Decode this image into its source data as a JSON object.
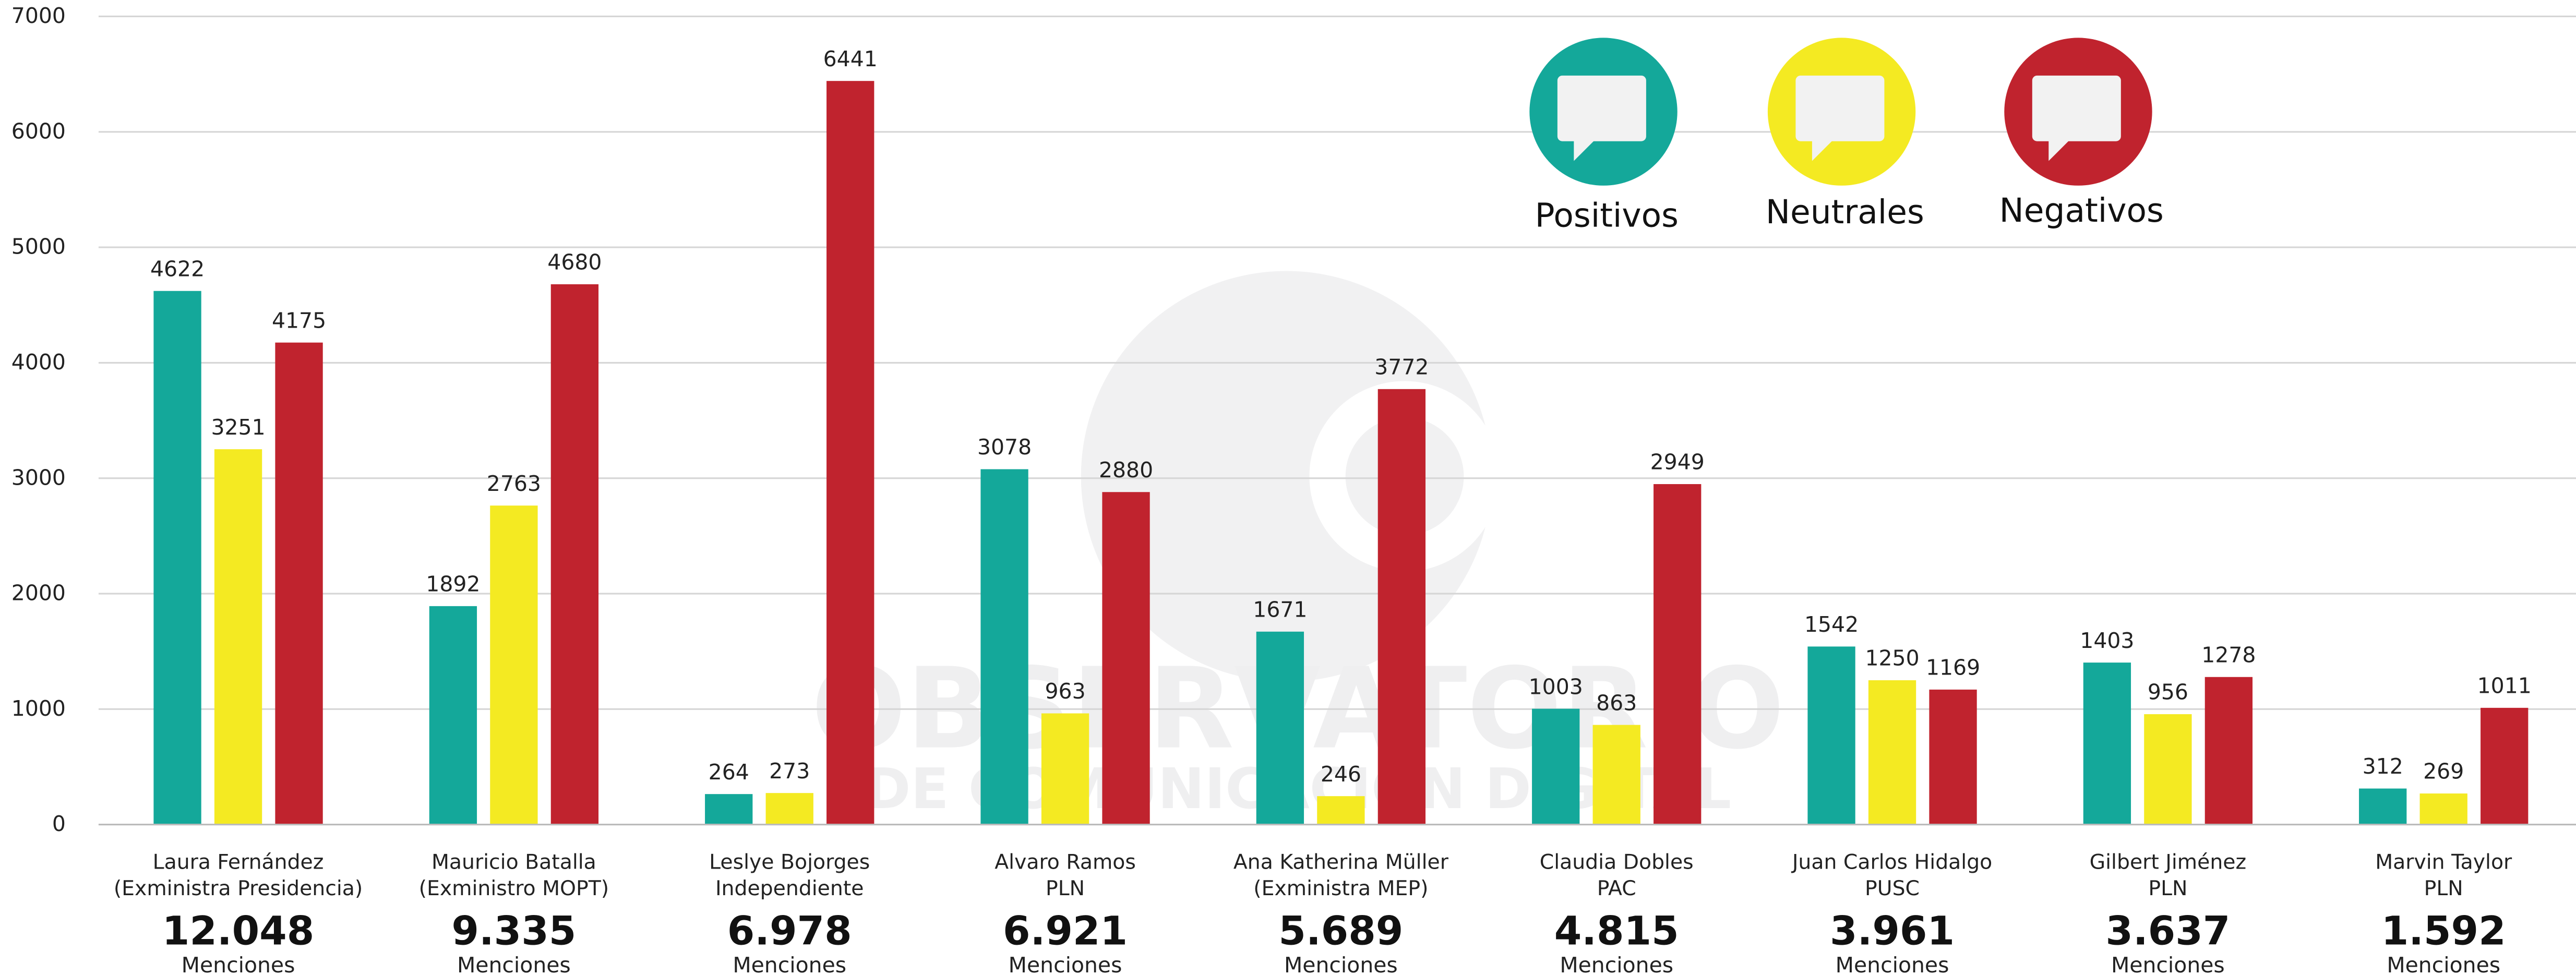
{
  "chart_data": {
    "type": "bar",
    "categories": [
      "Laura Fernández",
      "Mauricio Batalla",
      "Leslye Bojorges",
      "Alvaro Ramos",
      "Ana Katherina Müller",
      "Claudia Dobles",
      "Juan Carlos Hidalgo",
      "Gilbert Jiménez",
      "Marvin Taylor"
    ],
    "category_notes": [
      "(Exministra Presidencia)",
      "(Exministro MOPT)",
      "Independiente",
      "PLN",
      "(Exministra MEP)",
      "PAC",
      "PUSC",
      "PLN",
      "PLN"
    ],
    "totals": [
      "12.048",
      "9.335",
      "6.978",
      "6.921",
      "5.689",
      "4.815",
      "3.961",
      "3.637",
      "1.592"
    ],
    "totals_label": "Menciones",
    "series": [
      {
        "name": "Positivos",
        "color": "#14a89a",
        "values": [
          4622,
          1892,
          264,
          3078,
          1671,
          1003,
          1542,
          1403,
          312
        ]
      },
      {
        "name": "Neutrales",
        "color": "#f4ea22",
        "values": [
          3251,
          2763,
          273,
          963,
          246,
          863,
          1250,
          956,
          269
        ]
      },
      {
        "name": "Negativos",
        "color": "#c0232e",
        "values": [
          4175,
          4680,
          6441,
          2880,
          3772,
          2949,
          1169,
          1278,
          1011
        ]
      }
    ],
    "watermark": [
      "OBSERVATORIO",
      "DE COMUNICACIÓN DIGITAL"
    ],
    "ylim": [
      0,
      7000
    ],
    "yticks": [
      0,
      1000,
      2000,
      3000,
      4000,
      5000,
      6000,
      7000
    ],
    "grid": true,
    "legend": "top-right"
  }
}
